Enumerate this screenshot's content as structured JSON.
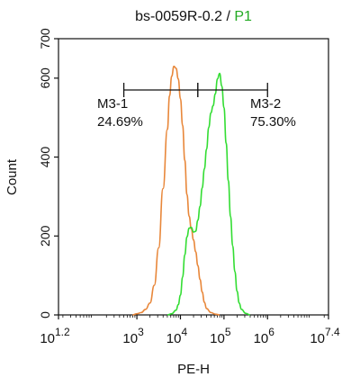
{
  "chart_data": {
    "type": "area",
    "title_prefix": "bs-0059R-0.2 / ",
    "title_gate": "P1",
    "title_gate_color": "#22aa22",
    "xlabel": "PE-H",
    "ylabel": "Count",
    "x_scale": "log10",
    "xlim": [
      1.2,
      7.4
    ],
    "ylim": [
      0,
      700
    ],
    "y_ticks": [
      0,
      200,
      400,
      600,
      700
    ],
    "x_ticks": [
      {
        "base": "10",
        "exp": "1.2",
        "value": 1.2
      },
      {
        "base": "10",
        "exp": "3",
        "value": 3
      },
      {
        "base": "10",
        "exp": "4",
        "value": 4
      },
      {
        "base": "10",
        "exp": "5",
        "value": 5
      },
      {
        "base": "10",
        "exp": "6",
        "value": 6
      },
      {
        "base": "10",
        "exp": "7.4",
        "value": 7.4
      }
    ],
    "series": [
      {
        "color": "#e8873a",
        "x": [
          2.9,
          3.0,
          3.1,
          3.2,
          3.3,
          3.4,
          3.5,
          3.6,
          3.7,
          3.75,
          3.8,
          3.85,
          3.9,
          3.95,
          4.0,
          4.05,
          4.1,
          4.15,
          4.2,
          4.25,
          4.3,
          4.35,
          4.4,
          4.45,
          4.5,
          4.55,
          4.6,
          4.7,
          4.8,
          4.9
        ],
        "values": [
          0,
          3,
          6,
          14,
          30,
          75,
          170,
          320,
          470,
          555,
          605,
          630,
          625,
          598,
          548,
          480,
          392,
          305,
          250,
          218,
          190,
          160,
          125,
          90,
          58,
          32,
          16,
          6,
          2,
          0
        ]
      },
      {
        "color": "#33dd33",
        "x": [
          3.7,
          3.8,
          3.9,
          3.95,
          4.0,
          4.05,
          4.1,
          4.15,
          4.2,
          4.25,
          4.3,
          4.35,
          4.4,
          4.45,
          4.5,
          4.55,
          4.6,
          4.65,
          4.7,
          4.75,
          4.8,
          4.85,
          4.9,
          4.95,
          5.0,
          5.05,
          5.1,
          5.15,
          5.2,
          5.25,
          5.3,
          5.35,
          5.4,
          5.5,
          5.6
        ],
        "values": [
          0,
          3,
          12,
          26,
          50,
          96,
          152,
          198,
          220,
          222,
          210,
          212,
          240,
          275,
          322,
          370,
          420,
          475,
          512,
          530,
          560,
          598,
          612,
          580,
          525,
          435,
          340,
          250,
          175,
          110,
          60,
          30,
          14,
          4,
          0
        ]
      }
    ],
    "gates": [
      {
        "name": "M3-1",
        "percent": "24.69%",
        "x_start": 2.7,
        "x_end": 4.4,
        "y": 570
      },
      {
        "name": "M3-2",
        "percent": "75.30%",
        "x_start": 4.4,
        "x_end": 6.0,
        "y": 570
      }
    ]
  }
}
